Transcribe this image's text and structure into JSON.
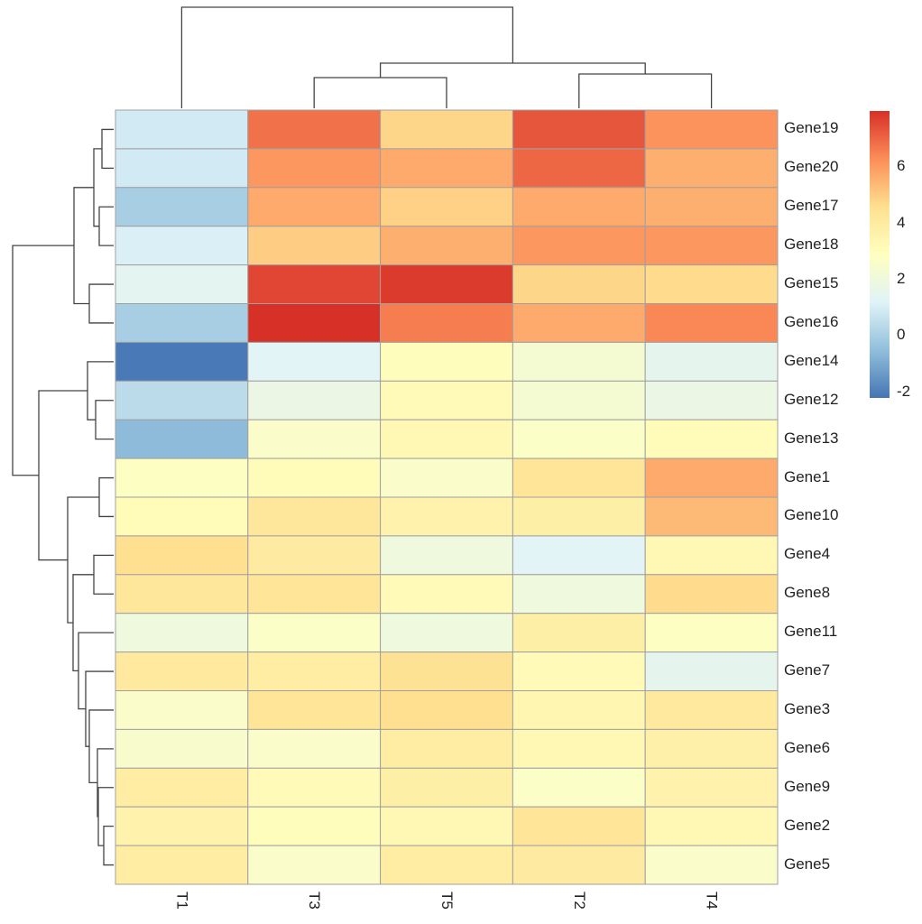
{
  "chart_data": {
    "type": "heatmap",
    "title": "",
    "columns": [
      "T1",
      "T3",
      "T5",
      "T2",
      "T4"
    ],
    "rows": [
      "Gene19",
      "Gene20",
      "Gene17",
      "Gene18",
      "Gene15",
      "Gene16",
      "Gene14",
      "Gene12",
      "Gene13",
      "Gene1",
      "Gene10",
      "Gene4",
      "Gene8",
      "Gene11",
      "Gene7",
      "Gene3",
      "Gene6",
      "Gene9",
      "Gene2",
      "Gene5"
    ],
    "values": [
      [
        0.9,
        6.8,
        4.8,
        7.3,
        6.2
      ],
      [
        0.9,
        6.1,
        5.7,
        7.0,
        5.6
      ],
      [
        0.0,
        5.7,
        4.9,
        5.7,
        5.6
      ],
      [
        1.1,
        5.0,
        5.6,
        6.1,
        6.1
      ],
      [
        1.4,
        7.6,
        7.8,
        4.8,
        4.7
      ],
      [
        0.0,
        8.0,
        6.6,
        5.7,
        6.4
      ],
      [
        -2.1,
        1.3,
        3.0,
        2.3,
        1.5
      ],
      [
        0.4,
        1.8,
        3.2,
        2.3,
        1.8
      ],
      [
        -0.6,
        2.6,
        3.3,
        2.7,
        3.1
      ],
      [
        2.8,
        3.1,
        2.6,
        4.3,
        5.7
      ],
      [
        3.1,
        4.2,
        3.6,
        3.8,
        5.4
      ],
      [
        4.6,
        4.0,
        2.0,
        1.3,
        3.3
      ],
      [
        4.2,
        4.3,
        3.2,
        2.0,
        4.7
      ],
      [
        2.0,
        2.7,
        2.0,
        3.8,
        2.8
      ],
      [
        4.1,
        3.9,
        4.5,
        3.2,
        1.5
      ],
      [
        2.6,
        4.3,
        4.6,
        3.4,
        4.1
      ],
      [
        2.5,
        2.6,
        3.9,
        3.3,
        3.7
      ],
      [
        3.9,
        3.2,
        3.8,
        2.7,
        3.6
      ],
      [
        3.6,
        3.0,
        3.3,
        4.3,
        3.3
      ],
      [
        3.9,
        2.6,
        3.9,
        4.0,
        2.6
      ]
    ],
    "color_range": [
      -2.2,
      8.0
    ],
    "palette": [
      "#4575B4",
      "#91BFDB",
      "#E0F3F8",
      "#FFFFBF",
      "#FEE090",
      "#FC8D59",
      "#D73027"
    ],
    "cell_border_color": "#A0A0A0",
    "legend": {
      "position": "right",
      "ticks": [
        -2,
        0,
        2,
        4,
        6
      ],
      "tick_labels": [
        "-2",
        "0",
        "2",
        "4",
        "6"
      ]
    },
    "row_dendrogram": true,
    "column_dendrogram": true
  }
}
